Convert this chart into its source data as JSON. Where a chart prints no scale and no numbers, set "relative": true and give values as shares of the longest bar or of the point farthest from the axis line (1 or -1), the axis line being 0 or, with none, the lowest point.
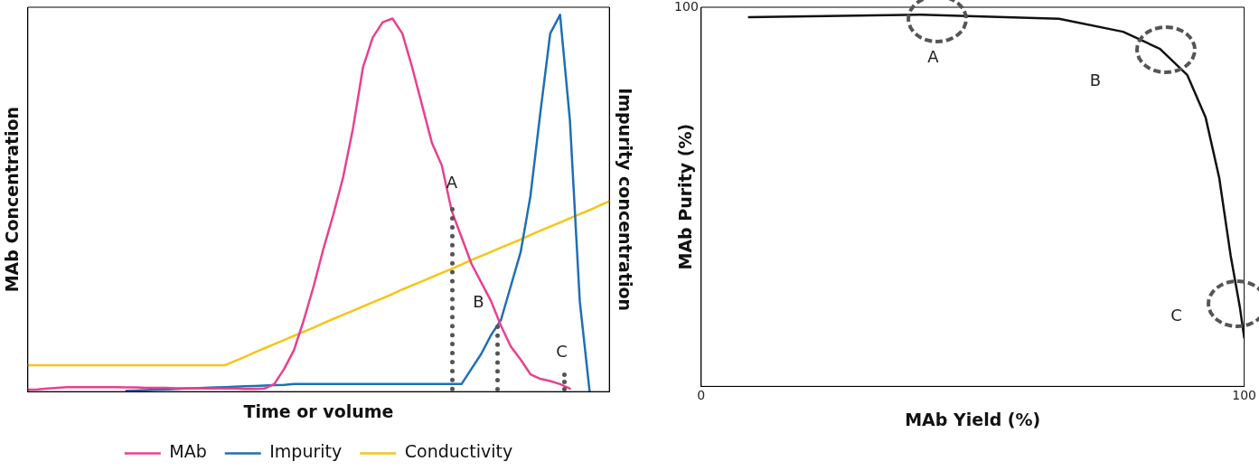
{
  "chart_data": [
    {
      "type": "line",
      "relative": true,
      "xlabel": "Time or volume",
      "ylabel": "MAb Concentration",
      "y2label": "Impurity concentration",
      "legend": "bottom",
      "marker": "none",
      "grid": false,
      "categories": [
        null,
        null,
        null,
        null,
        null,
        null,
        null,
        null,
        null,
        null,
        null,
        null,
        null,
        null,
        null,
        null,
        null,
        null,
        null,
        null,
        null,
        null,
        null,
        null,
        null,
        null,
        null,
        null,
        null,
        null,
        null,
        null,
        null,
        null,
        null,
        null,
        null,
        null,
        null,
        null,
        null,
        null,
        null,
        null,
        null,
        null,
        null,
        null,
        null,
        null,
        null,
        null,
        null,
        null,
        null,
        null,
        null,
        null,
        null,
        null
      ],
      "series": [
        {
          "name": "MAb",
          "color": "#e8418f",
          "values": [
            0.005,
            0.006,
            0.008,
            0.01,
            0.012,
            0.012,
            0.012,
            0.012,
            0.012,
            0.012,
            0.011,
            0.011,
            0.01,
            0.01,
            0.01,
            0.009,
            0.009,
            0.009,
            0.008,
            0.008,
            0.008,
            0.008,
            0.007,
            0.007,
            0.008,
            0.02,
            0.06,
            0.11,
            0.19,
            0.28,
            0.38,
            0.47,
            0.57,
            0.7,
            0.86,
            0.94,
            0.98,
            0.99,
            0.95,
            0.86,
            0.76,
            0.66,
            0.6,
            0.48,
            0.41,
            0.34,
            0.29,
            0.24,
            0.175,
            0.12,
            0.085,
            0.046,
            0.034,
            0.028,
            0.02,
            0.008,
            null,
            null,
            null,
            null
          ]
        },
        {
          "name": "Impurity",
          "color": "#1f6fb5",
          "values": [
            null,
            null,
            null,
            null,
            null,
            null,
            null,
            null,
            null,
            null,
            0.002,
            0.003,
            0.004,
            0.005,
            0.006,
            0.007,
            0.008,
            0.009,
            0.01,
            0.011,
            0.012,
            0.013,
            0.014,
            0.015,
            0.016,
            0.017,
            0.018,
            0.02,
            0.02,
            0.02,
            0.02,
            0.02,
            0.02,
            0.02,
            0.02,
            0.02,
            0.02,
            0.02,
            0.02,
            0.02,
            0.02,
            0.02,
            0.02,
            0.02,
            0.02,
            0.06,
            0.1,
            0.15,
            0.19,
            0.28,
            0.37,
            0.52,
            0.74,
            0.95,
            1.0,
            0.72,
            0.24,
            0.0,
            null,
            null
          ]
        },
        {
          "name": "Conductivity",
          "color": "#f5c518",
          "values": [
            0.07,
            0.07,
            0.07,
            0.07,
            0.07,
            0.07,
            0.07,
            0.07,
            0.07,
            0.07,
            0.07,
            0.07,
            0.07,
            0.07,
            0.07,
            0.07,
            0.07,
            0.07,
            0.07,
            0.07,
            0.07,
            0.081,
            0.092,
            0.104,
            0.115,
            0.126,
            0.137,
            0.148,
            0.159,
            0.17,
            0.182,
            0.193,
            0.204,
            0.215,
            0.226,
            0.237,
            0.248,
            0.259,
            0.271,
            0.282,
            0.293,
            0.304,
            0.315,
            0.326,
            0.337,
            0.349,
            0.36,
            0.371,
            0.382,
            0.393,
            0.404,
            0.416,
            0.427,
            0.438,
            0.449,
            0.46,
            0.471,
            0.482,
            0.494,
            0.505
          ]
        }
      ],
      "annotations": [
        "A",
        "B",
        "C"
      ]
    },
    {
      "type": "line",
      "relative": true,
      "xlabel": "MAb Yield (%)",
      "ylabel": "MAb Purity (%)",
      "legend": false,
      "marker": "none",
      "grid": false,
      "xlim": [
        0,
        100
      ],
      "xticks": [
        0,
        100
      ],
      "series": [
        {
          "color": "#111111",
          "x": [
            8.8,
            40.5,
            65.9,
            77.7,
            84.5,
            89.5,
            92.9,
            95.4,
            97.5,
            99.2,
            100
          ],
          "values": [
            0.993,
            1,
            0.989,
            0.954,
            0.908,
            0.838,
            0.723,
            0.561,
            0.352,
            0.213,
            0.131
          ]
        }
      ],
      "annotations": [
        "100",
        "A",
        "B",
        "C"
      ]
    }
  ]
}
